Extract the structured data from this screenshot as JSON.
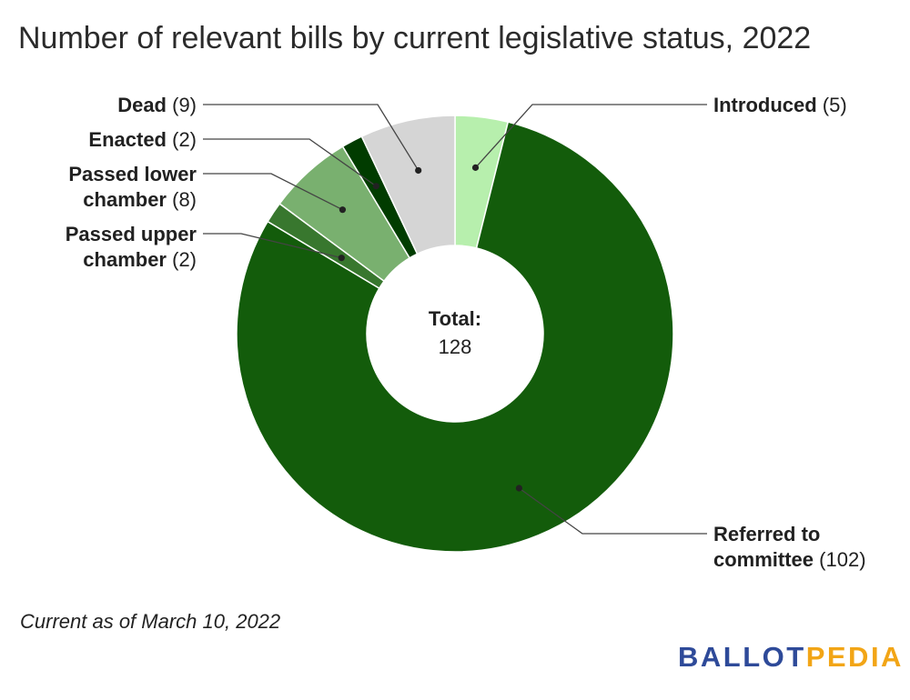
{
  "chart_data": {
    "type": "pie",
    "title": "Number of relevant bills by current legislative status, 2022",
    "center_label": "Total:",
    "center_value": "128",
    "slices": [
      {
        "label": "Introduced",
        "value": 5,
        "color": "#b7efad"
      },
      {
        "label": "Referred to committee",
        "value": 102,
        "color": "#135c0b"
      },
      {
        "label": "Passed upper chamber",
        "value": 2,
        "color": "#38772e"
      },
      {
        "label": "Passed lower chamber",
        "value": 8,
        "color": "#79b06f"
      },
      {
        "label": "Enacted",
        "value": 2,
        "color": "#013c00"
      },
      {
        "label": "Dead",
        "value": 9,
        "color": "#d5d5d5"
      }
    ],
    "labels": [
      {
        "lines": [
          {
            "name": "Introduced",
            "count": "(5)"
          }
        ]
      },
      {
        "lines": [
          {
            "name": "Referred to",
            "count": ""
          },
          {
            "name": "committee",
            "count": "(102)"
          }
        ]
      },
      {
        "lines": [
          {
            "name": "Passed upper",
            "count": ""
          },
          {
            "name": "chamber",
            "count": "(2)"
          }
        ]
      },
      {
        "lines": [
          {
            "name": "Passed lower",
            "count": ""
          },
          {
            "name": "chamber",
            "count": "(8)"
          }
        ]
      },
      {
        "lines": [
          {
            "name": "Enacted",
            "count": "(2)"
          }
        ]
      },
      {
        "lines": [
          {
            "name": "Dead",
            "count": "(9)"
          }
        ]
      }
    ],
    "legend": "none"
  },
  "footnote": "Current as of March 10, 2022",
  "logo": {
    "part1": "BALLOT",
    "part2": "PEDIA",
    "color1": "#2e4a99",
    "color2": "#f2a516"
  }
}
